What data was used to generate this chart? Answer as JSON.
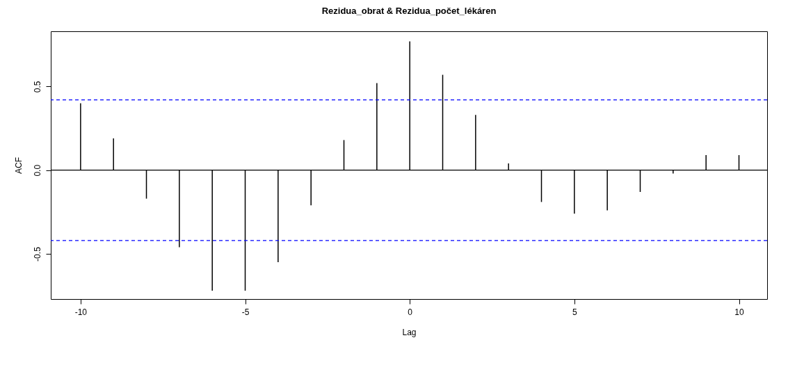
{
  "chart_data": {
    "type": "bar",
    "title": "Rezidua_obrat & Rezidua_počet_lékáren",
    "xlabel": "Lag",
    "ylabel": "ACF",
    "x": [
      -10,
      -9,
      -8,
      -7,
      -6,
      -5,
      -4,
      -3,
      -2,
      -1,
      0,
      1,
      2,
      3,
      4,
      5,
      6,
      7,
      8,
      9,
      10
    ],
    "values": [
      0.4,
      0.19,
      -0.17,
      -0.46,
      -0.72,
      -0.72,
      -0.55,
      -0.21,
      0.18,
      0.52,
      0.77,
      0.57,
      0.33,
      0.04,
      -0.19,
      -0.26,
      -0.24,
      -0.13,
      -0.02,
      0.09,
      0.09
    ],
    "color": "#000000",
    "xlim": [
      -10.8,
      10.75
    ],
    "xticks": [
      -10,
      -5,
      0,
      5,
      10
    ],
    "ylim": [
      -0.77,
      0.83
    ],
    "yticks": [
      -0.5,
      {
        "value": 0,
        "label": "0.0"
      },
      0.5
    ],
    "grid": false,
    "ref_lines": [
      {
        "axis": "y",
        "value": 0.42,
        "color": "#0000ff",
        "line_style": "dashed"
      },
      {
        "axis": "y",
        "value": -0.42,
        "color": "#0000ff",
        "line_style": "dashed"
      },
      {
        "axis": "y",
        "value": 0,
        "color": "#000000",
        "line_style": "solid"
      }
    ]
  }
}
